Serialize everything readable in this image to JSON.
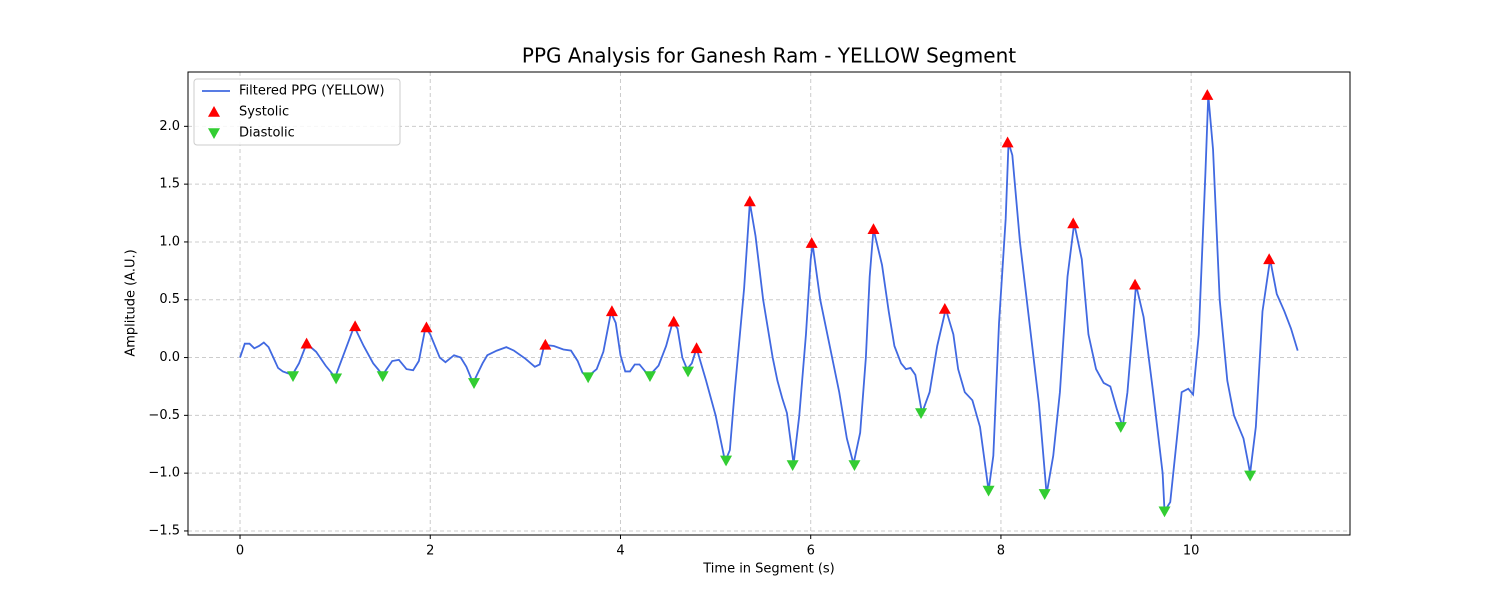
{
  "chart_data": {
    "type": "line",
    "title": "PPG Analysis for Ganesh Ram - YELLOW Segment",
    "xlabel": "Time in Segment (s)",
    "ylabel": "Amplitude (A.U.)",
    "xlim": [
      -0.547,
      11.67
    ],
    "ylim": [
      -1.535,
      2.47
    ],
    "xticks": [
      0,
      2,
      4,
      6,
      8,
      10
    ],
    "yticks": [
      {
        "value": -1.5,
        "label": "−1.5"
      },
      {
        "value": -1.0,
        "label": "−1.0"
      },
      {
        "value": -0.5,
        "label": "−0.5"
      },
      {
        "value": 0.0,
        "label": "0.0"
      },
      0.5,
      {
        "value": 1.0,
        "label": "1.0"
      },
      1.5,
      {
        "value": 2.0,
        "label": "2.0"
      }
    ],
    "grid": true,
    "legend": "upper left",
    "series": [
      {
        "name": "Filtered PPG (YELLOW)",
        "color": "#4169e1",
        "type": "line",
        "x": [
          0,
          0.05,
          0.1,
          0.15,
          0.2,
          0.25,
          0.3,
          0.35,
          0.4,
          0.45,
          0.55,
          0.62,
          0.7,
          0.8,
          0.9,
          1.0,
          1.1,
          1.2,
          1.3,
          1.4,
          1.5,
          1.6,
          1.67,
          1.75,
          1.82,
          1.88,
          1.95,
          2.0,
          2.1,
          2.16,
          2.25,
          2.32,
          2.38,
          2.45,
          2.55,
          2.6,
          2.7,
          2.8,
          2.88,
          3.0,
          3.1,
          3.15,
          3.2,
          3.3,
          3.4,
          3.48,
          3.55,
          3.6,
          3.65,
          3.75,
          3.82,
          3.9,
          3.95,
          4.0,
          4.05,
          4.1,
          4.15,
          4.2,
          4.3,
          4.4,
          4.48,
          4.55,
          4.6,
          4.65,
          4.7,
          4.75,
          4.8,
          4.9,
          5.0,
          5.1,
          5.15,
          5.2,
          5.3,
          5.36,
          5.42,
          5.5,
          5.6,
          5.65,
          5.7,
          5.75,
          5.82,
          5.88,
          5.95,
          6.0,
          6.02,
          6.1,
          6.2,
          6.3,
          6.38,
          6.45,
          6.52,
          6.58,
          6.62,
          6.66,
          6.75,
          6.82,
          6.88,
          6.95,
          7.0,
          7.05,
          7.1,
          7.17,
          7.25,
          7.33,
          7.42,
          7.5,
          7.55,
          7.62,
          7.7,
          7.78,
          7.87,
          7.92,
          7.98,
          8.05,
          8.08,
          8.12,
          8.2,
          8.3,
          8.4,
          8.48,
          8.55,
          8.62,
          8.7,
          8.77,
          8.85,
          8.92,
          9.0,
          9.08,
          9.15,
          9.22,
          9.28,
          9.33,
          9.38,
          9.42,
          9.5,
          9.6,
          9.7,
          9.72,
          9.78,
          9.85,
          9.9,
          9.97,
          10.02,
          10.08,
          10.15,
          10.18,
          10.23,
          10.3,
          10.38,
          10.45,
          10.5,
          10.55,
          10.62,
          10.68,
          10.75,
          10.83,
          10.9,
          10.98,
          11.05,
          11.12
        ],
        "values": [
          0,
          0.12,
          0.12,
          0.08,
          0.1,
          0.13,
          0.09,
          0.0,
          -0.09,
          -0.12,
          -0.15,
          -0.05,
          0.12,
          0.05,
          -0.07,
          -0.17,
          0.05,
          0.27,
          0.1,
          -0.05,
          -0.15,
          -0.03,
          -0.02,
          -0.1,
          -0.11,
          -0.03,
          0.26,
          0.2,
          0.0,
          -0.04,
          0.02,
          0.0,
          -0.08,
          -0.22,
          -0.05,
          0.02,
          0.06,
          0.09,
          0.06,
          -0.01,
          -0.08,
          -0.06,
          0.11,
          0.1,
          0.07,
          0.06,
          -0.03,
          -0.13,
          -0.17,
          -0.1,
          0.05,
          0.39,
          0.3,
          0.02,
          -0.12,
          -0.12,
          -0.06,
          -0.06,
          -0.16,
          -0.07,
          0.1,
          0.31,
          0.25,
          0.0,
          -0.1,
          -0.05,
          0.08,
          -0.2,
          -0.5,
          -0.9,
          -0.8,
          -0.3,
          0.6,
          1.34,
          1.05,
          0.5,
          0.0,
          -0.2,
          -0.35,
          -0.48,
          -0.92,
          -0.5,
          0.2,
          0.85,
          0.98,
          0.5,
          0.1,
          -0.3,
          -0.7,
          -0.92,
          -0.65,
          0.0,
          0.7,
          1.11,
          0.8,
          0.4,
          0.1,
          -0.05,
          -0.1,
          -0.09,
          -0.15,
          -0.48,
          -0.3,
          0.1,
          0.42,
          0.2,
          -0.1,
          -0.3,
          -0.37,
          -0.6,
          -1.15,
          -0.85,
          0.3,
          1.2,
          1.86,
          1.75,
          1.0,
          0.3,
          -0.4,
          -1.18,
          -0.85,
          -0.3,
          0.7,
          1.16,
          0.85,
          0.2,
          -0.1,
          -0.22,
          -0.25,
          -0.45,
          -0.6,
          -0.3,
          0.2,
          0.63,
          0.35,
          -0.3,
          -1.0,
          -1.33,
          -1.25,
          -0.7,
          -0.3,
          -0.27,
          -0.32,
          0.2,
          1.6,
          2.27,
          1.8,
          0.5,
          -0.2,
          -0.5,
          -0.6,
          -0.7,
          -1.0,
          -0.6,
          0.4,
          0.85,
          0.55,
          0.4,
          0.25,
          0.06
        ]
      },
      {
        "name": "Systolic",
        "color": "#ff0000",
        "type": "scatter",
        "marker": "^",
        "x": [
          0.7,
          1.21,
          1.96,
          3.21,
          3.91,
          4.56,
          4.8,
          5.36,
          6.01,
          6.66,
          7.41,
          8.07,
          8.76,
          9.41,
          10.17,
          10.82
        ],
        "values": [
          0.12,
          0.27,
          0.26,
          0.11,
          0.4,
          0.31,
          0.08,
          1.35,
          0.99,
          1.11,
          0.42,
          1.86,
          1.16,
          0.63,
          2.27,
          0.85
        ]
      },
      {
        "name": "Diastolic",
        "color": "#32cd32",
        "type": "scatter",
        "marker": "v",
        "x": [
          0.557,
          1.01,
          1.5,
          2.46,
          3.66,
          4.31,
          4.71,
          5.11,
          5.81,
          6.46,
          7.16,
          7.87,
          8.46,
          9.26,
          9.72,
          10.62
        ],
        "values": [
          -0.16,
          -0.18,
          -0.16,
          -0.22,
          -0.17,
          -0.16,
          -0.12,
          -0.89,
          -0.93,
          -0.93,
          -0.48,
          -1.15,
          -1.18,
          -0.6,
          -1.33,
          -1.02
        ]
      }
    ]
  }
}
